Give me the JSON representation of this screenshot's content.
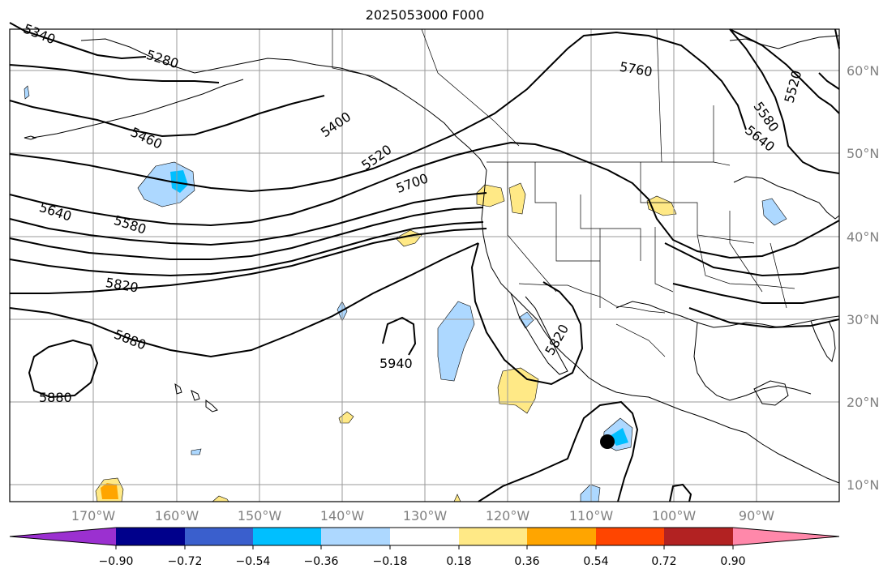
{
  "title": "2025053000 F000",
  "latitude_labels": [
    "60°N",
    "50°N",
    "40°N",
    "30°N",
    "20°N",
    "10°N"
  ],
  "longitude_labels": [
    "170°W",
    "160°W",
    "150°W",
    "140°W",
    "130°W",
    "120°W",
    "110°W",
    "100°W",
    "90°W"
  ],
  "contour_labels": [
    "5340",
    "5280",
    "5460",
    "5400",
    "5520",
    "5700",
    "5760",
    "5640",
    "5580",
    "5820",
    "5880",
    "5940",
    "5880",
    "5820",
    "5640",
    "5580",
    "5520"
  ],
  "colorbar": {
    "tick_labels": [
      "−0.90",
      "−0.72",
      "−0.54",
      "−0.36",
      "−0.18",
      "0.18",
      "0.36",
      "0.54",
      "0.72",
      "0.90"
    ],
    "colors": [
      "#9b30d0",
      "#00008b",
      "#3a5fcd",
      "#00bfff",
      "#add8ff",
      "#ffffff",
      "#ffe986",
      "#ffa500",
      "#ff4500",
      "#b22222",
      "#ff88aa"
    ]
  },
  "colors": {
    "contour": "#000000",
    "coast": "#000000",
    "grid": "#9a9a9a",
    "negative_light": "#add8ff",
    "negative_mid": "#00bfff",
    "positive_light": "#ffe986",
    "positive_mid": "#ffa500",
    "marker": "#000000"
  }
}
